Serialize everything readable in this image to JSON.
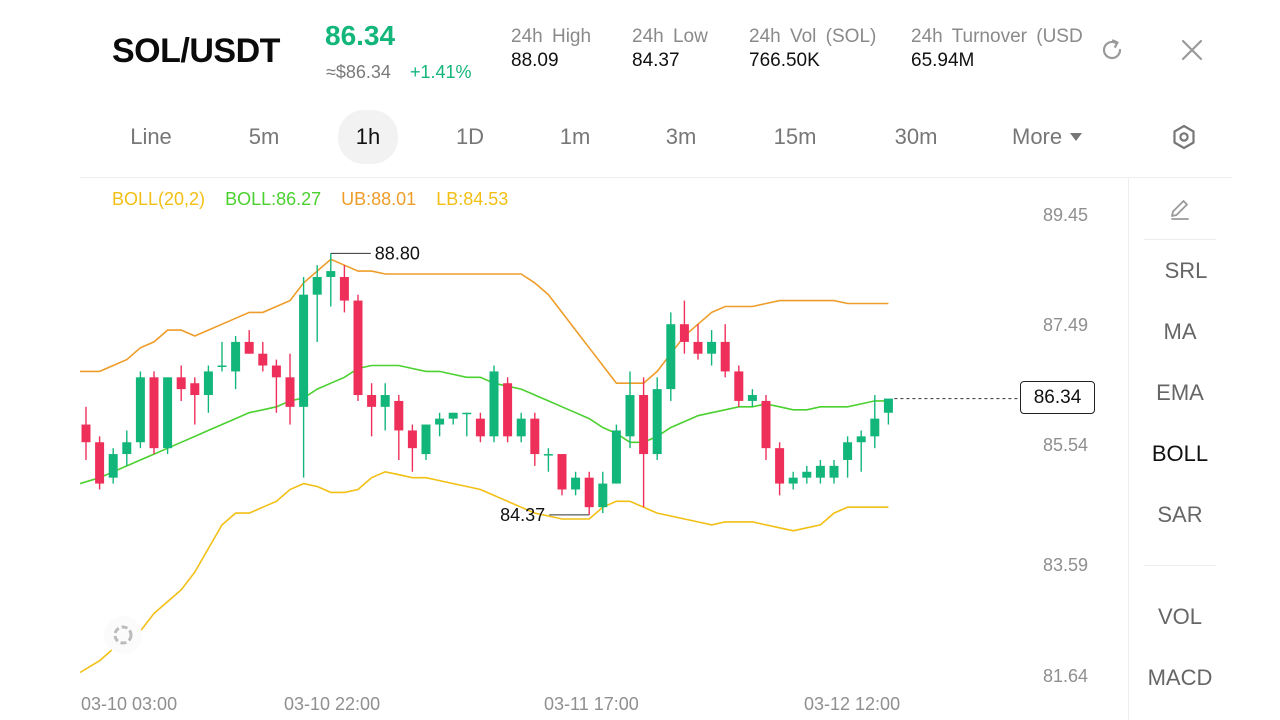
{
  "header": {
    "pair": "SOL/USDT",
    "price": "86.34",
    "approx_price": "≈$86.34",
    "change": "+1.41%",
    "stats": [
      {
        "label": "24h High",
        "value": "88.09"
      },
      {
        "label": "24h Low",
        "value": "84.37"
      },
      {
        "label": "24h Vol (SOL)",
        "value": "766.50K"
      },
      {
        "label": "24h Turnover (USD",
        "value": "65.94M"
      }
    ],
    "refresh_icon": "refresh-icon",
    "close_icon": "close-icon"
  },
  "timeframes": {
    "items": [
      "Line",
      "5m",
      "1h",
      "1D",
      "1m",
      "3m",
      "15m",
      "30m"
    ],
    "active": "1h",
    "more_label": "More",
    "settings_icon": "hexagon-settings-icon"
  },
  "legend": {
    "boll_params": "BOLL(20,2)",
    "boll": "BOLL:86.27",
    "ub": "UB:88.01",
    "lb": "LB:84.53"
  },
  "colors": {
    "up": "#13b67a",
    "down": "#ee2f5a",
    "mid": "#4bd12f",
    "upper": "#ee9d2a",
    "lower": "#f2bf14",
    "legend_params": "#f2bf14"
  },
  "chart_data": {
    "type": "candlestick",
    "interval": "1h",
    "indicator": "BOLL(20,2)",
    "y_ticks": [
      "89.45",
      "87.49",
      "85.54",
      "83.59",
      "81.64"
    ],
    "x_ticks": [
      "03-10 03:00",
      "03-10 22:00",
      "03-11 17:00",
      "03-12 12:00"
    ],
    "ylim": [
      81.64,
      89.45
    ],
    "max_label": "88.80",
    "min_label": "84.37",
    "last_price": "86.34",
    "candles": [
      {
        "o": 85.9,
        "h": 86.2,
        "l": 85.3,
        "c": 85.6
      },
      {
        "o": 85.6,
        "h": 85.7,
        "l": 84.8,
        "c": 84.9
      },
      {
        "o": 85.0,
        "h": 85.5,
        "l": 84.9,
        "c": 85.4
      },
      {
        "o": 85.4,
        "h": 85.8,
        "l": 85.2,
        "c": 85.6
      },
      {
        "o": 85.6,
        "h": 86.8,
        "l": 85.5,
        "c": 86.7
      },
      {
        "o": 86.7,
        "h": 86.8,
        "l": 85.4,
        "c": 85.5
      },
      {
        "o": 85.5,
        "h": 86.7,
        "l": 85.4,
        "c": 86.7
      },
      {
        "o": 86.7,
        "h": 86.9,
        "l": 86.3,
        "c": 86.5
      },
      {
        "o": 86.6,
        "h": 86.7,
        "l": 85.9,
        "c": 86.4
      },
      {
        "o": 86.4,
        "h": 86.9,
        "l": 86.1,
        "c": 86.8
      },
      {
        "o": 86.9,
        "h": 87.3,
        "l": 86.8,
        "c": 86.9
      },
      {
        "o": 86.8,
        "h": 87.4,
        "l": 86.5,
        "c": 87.3
      },
      {
        "o": 87.3,
        "h": 87.5,
        "l": 87.1,
        "c": 87.1
      },
      {
        "o": 87.1,
        "h": 87.3,
        "l": 86.8,
        "c": 86.9
      },
      {
        "o": 86.9,
        "h": 87.0,
        "l": 86.1,
        "c": 86.7
      },
      {
        "o": 86.7,
        "h": 87.1,
        "l": 85.9,
        "c": 86.2
      },
      {
        "o": 86.2,
        "h": 88.4,
        "l": 85.0,
        "c": 88.1
      },
      {
        "o": 88.1,
        "h": 88.6,
        "l": 87.3,
        "c": 88.4
      },
      {
        "o": 88.4,
        "h": 88.8,
        "l": 87.9,
        "c": 88.5
      },
      {
        "o": 88.4,
        "h": 88.6,
        "l": 87.8,
        "c": 88.0
      },
      {
        "o": 88.0,
        "h": 88.1,
        "l": 86.3,
        "c": 86.4
      },
      {
        "o": 86.4,
        "h": 86.6,
        "l": 85.7,
        "c": 86.2
      },
      {
        "o": 86.2,
        "h": 86.6,
        "l": 85.8,
        "c": 86.4
      },
      {
        "o": 86.3,
        "h": 86.4,
        "l": 85.3,
        "c": 85.8
      },
      {
        "o": 85.8,
        "h": 85.9,
        "l": 85.1,
        "c": 85.5
      },
      {
        "o": 85.4,
        "h": 85.9,
        "l": 85.3,
        "c": 85.9
      },
      {
        "o": 85.9,
        "h": 86.1,
        "l": 85.7,
        "c": 86.0
      },
      {
        "o": 86.0,
        "h": 86.1,
        "l": 85.9,
        "c": 86.1
      },
      {
        "o": 86.1,
        "h": 86.1,
        "l": 85.7,
        "c": 86.1
      },
      {
        "o": 86.0,
        "h": 86.1,
        "l": 85.6,
        "c": 85.7
      },
      {
        "o": 85.7,
        "h": 86.9,
        "l": 85.6,
        "c": 86.8
      },
      {
        "o": 86.6,
        "h": 86.7,
        "l": 85.6,
        "c": 85.7
      },
      {
        "o": 85.7,
        "h": 86.1,
        "l": 85.6,
        "c": 86.0
      },
      {
        "o": 86.0,
        "h": 86.1,
        "l": 85.2,
        "c": 85.4
      },
      {
        "o": 85.4,
        "h": 85.5,
        "l": 85.1,
        "c": 85.4
      },
      {
        "o": 85.4,
        "h": 85.4,
        "l": 84.7,
        "c": 84.8
      },
      {
        "o": 84.8,
        "h": 85.1,
        "l": 84.7,
        "c": 85.0
      },
      {
        "o": 85.0,
        "h": 85.1,
        "l": 84.37,
        "c": 84.5
      },
      {
        "o": 84.5,
        "h": 85.1,
        "l": 84.4,
        "c": 84.9
      },
      {
        "o": 84.9,
        "h": 85.9,
        "l": 84.9,
        "c": 85.8
      },
      {
        "o": 85.7,
        "h": 86.8,
        "l": 85.5,
        "c": 86.4
      },
      {
        "o": 86.4,
        "h": 86.7,
        "l": 84.5,
        "c": 85.4
      },
      {
        "o": 85.4,
        "h": 86.7,
        "l": 85.3,
        "c": 86.5
      },
      {
        "o": 86.5,
        "h": 87.8,
        "l": 86.3,
        "c": 87.6
      },
      {
        "o": 87.6,
        "h": 88.0,
        "l": 87.1,
        "c": 87.3
      },
      {
        "o": 87.3,
        "h": 87.6,
        "l": 87.0,
        "c": 87.1
      },
      {
        "o": 87.1,
        "h": 87.5,
        "l": 86.9,
        "c": 87.3
      },
      {
        "o": 87.3,
        "h": 87.6,
        "l": 86.7,
        "c": 86.8
      },
      {
        "o": 86.8,
        "h": 86.9,
        "l": 86.2,
        "c": 86.3
      },
      {
        "o": 86.3,
        "h": 86.5,
        "l": 86.2,
        "c": 86.4
      },
      {
        "o": 86.3,
        "h": 86.4,
        "l": 85.3,
        "c": 85.5
      },
      {
        "o": 85.5,
        "h": 85.6,
        "l": 84.7,
        "c": 84.9
      },
      {
        "o": 84.9,
        "h": 85.1,
        "l": 84.8,
        "c": 85.0
      },
      {
        "o": 85.0,
        "h": 85.2,
        "l": 84.9,
        "c": 85.1
      },
      {
        "o": 85.0,
        "h": 85.3,
        "l": 84.9,
        "c": 85.2
      },
      {
        "o": 85.0,
        "h": 85.3,
        "l": 84.9,
        "c": 85.2
      },
      {
        "o": 85.3,
        "h": 85.7,
        "l": 85.0,
        "c": 85.6
      },
      {
        "o": 85.6,
        "h": 85.8,
        "l": 85.1,
        "c": 85.7
      },
      {
        "o": 85.7,
        "h": 86.4,
        "l": 85.5,
        "c": 86.0
      },
      {
        "o": 86.1,
        "h": 86.3,
        "l": 85.9,
        "c": 86.34
      }
    ],
    "series": [
      {
        "name": "BOLL",
        "values": [
          84.9,
          85.0,
          85.1,
          85.2,
          85.3,
          85.4,
          85.5,
          85.6,
          85.7,
          85.8,
          85.9,
          86.0,
          86.1,
          86.15,
          86.2,
          86.3,
          86.35,
          86.5,
          86.6,
          86.7,
          86.85,
          86.9,
          86.9,
          86.9,
          86.85,
          86.8,
          86.8,
          86.75,
          86.7,
          86.7,
          86.6,
          86.55,
          86.5,
          86.4,
          86.3,
          86.2,
          86.1,
          86.0,
          85.85,
          85.75,
          85.6,
          85.6,
          85.7,
          85.85,
          85.95,
          86.05,
          86.1,
          86.15,
          86.2,
          86.2,
          86.25,
          86.2,
          86.15,
          86.15,
          86.2,
          86.2,
          86.2,
          86.25,
          86.3,
          86.3
        ]
      },
      {
        "name": "UB",
        "values": [
          86.8,
          86.8,
          86.9,
          87.0,
          87.2,
          87.3,
          87.5,
          87.5,
          87.4,
          87.5,
          87.6,
          87.7,
          87.8,
          87.8,
          87.9,
          88.0,
          88.3,
          88.5,
          88.7,
          88.6,
          88.5,
          88.5,
          88.45,
          88.45,
          88.45,
          88.45,
          88.45,
          88.45,
          88.45,
          88.45,
          88.45,
          88.45,
          88.45,
          88.3,
          88.1,
          87.8,
          87.5,
          87.2,
          86.9,
          86.6,
          86.6,
          86.6,
          86.8,
          87.1,
          87.4,
          87.6,
          87.8,
          87.9,
          87.9,
          87.9,
          87.95,
          88.0,
          88.0,
          88.0,
          88.0,
          88.0,
          87.95,
          87.95,
          87.95,
          87.95
        ]
      },
      {
        "name": "LB",
        "values": [
          81.7,
          81.9,
          82.1,
          82.2,
          82.4,
          82.7,
          82.9,
          83.1,
          83.4,
          83.8,
          84.2,
          84.4,
          84.4,
          84.5,
          84.6,
          84.8,
          84.9,
          84.85,
          84.75,
          84.75,
          84.8,
          85.0,
          85.1,
          85.05,
          85.0,
          85.0,
          84.95,
          84.9,
          84.85,
          84.8,
          84.7,
          84.6,
          84.5,
          84.4,
          84.35,
          84.3,
          84.3,
          84.3,
          84.5,
          84.6,
          84.6,
          84.5,
          84.4,
          84.35,
          84.3,
          84.25,
          84.2,
          84.25,
          84.25,
          84.25,
          84.2,
          84.15,
          84.1,
          84.15,
          84.2,
          84.4,
          84.5,
          84.5,
          84.5,
          84.5
        ]
      }
    ]
  },
  "sidebar": {
    "draw_icon": "pencil-icon",
    "items": [
      "SRL",
      "MA",
      "EMA",
      "BOLL",
      "SAR"
    ],
    "active": "BOLL",
    "sub_items": [
      "VOL",
      "MACD"
    ]
  }
}
